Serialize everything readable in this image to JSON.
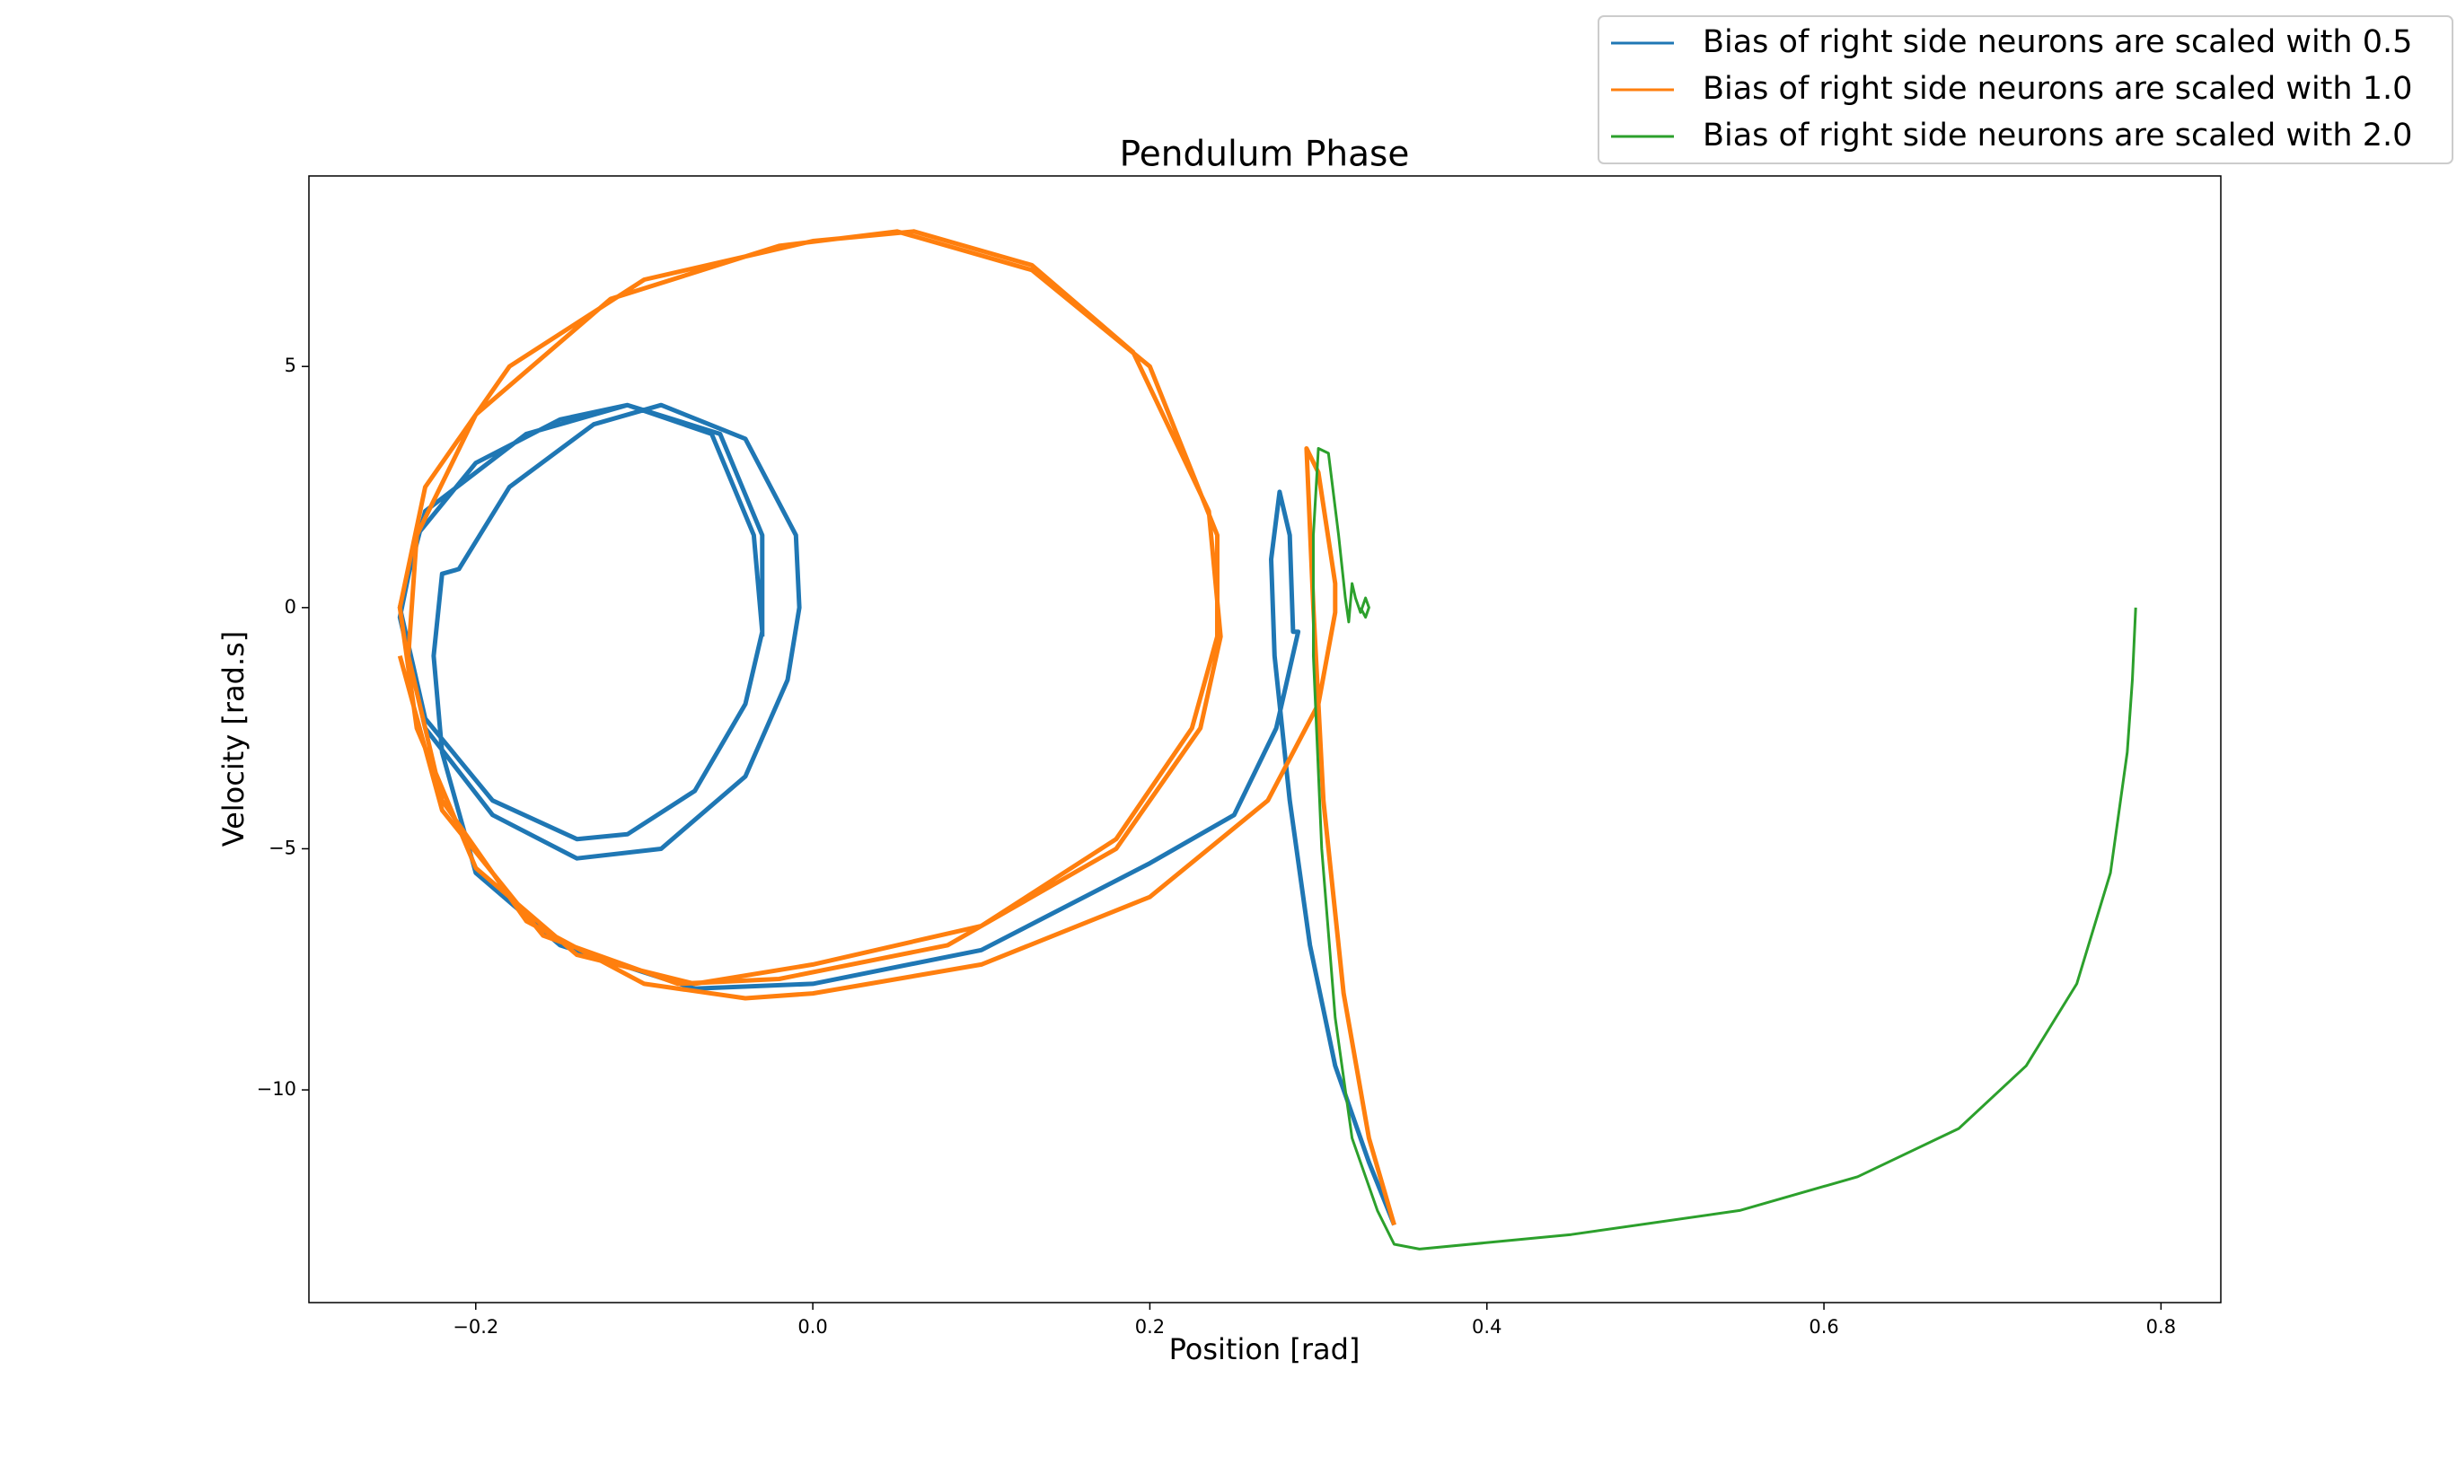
{
  "chart_data": {
    "type": "line",
    "title": "Pendulum Phase",
    "x_label": "Position [rad]",
    "y_label": "Velocity [rad.s]",
    "xlim": [
      -0.299,
      0.8355
    ],
    "ylim": [
      -14.41,
      8.95
    ],
    "xticks": [
      {
        "value": -0.2,
        "label": "−0.2"
      },
      {
        "value": 0,
        "label": "0.0"
      },
      0.2,
      0.4,
      0.6,
      0.8
    ],
    "yticks": [
      {
        "value": -10,
        "label": "−10"
      },
      {
        "value": -5,
        "label": "−5"
      },
      0,
      5
    ],
    "legend": "upper right",
    "series": [
      {
        "name": "Bias of right side neurons are scaled with 0.5",
        "color": "#1f77b4",
        "x": [
          0.345,
          0.33,
          0.31,
          0.295,
          0.283,
          0.274,
          0.272,
          0.277,
          0.283,
          0.285,
          0.288,
          0.275,
          0.25,
          0.2,
          0.1,
          0.0,
          -0.07,
          -0.15,
          -0.2,
          -0.22,
          -0.225,
          -0.22,
          -0.21,
          -0.18,
          -0.13,
          -0.09,
          -0.04,
          -0.01,
          -0.008,
          -0.015,
          -0.04,
          -0.09,
          -0.14,
          -0.19,
          -0.23,
          -0.245,
          -0.235,
          -0.2,
          -0.15,
          -0.11,
          -0.06,
          -0.035,
          -0.03,
          -0.04,
          -0.07,
          -0.11,
          -0.14,
          -0.19,
          -0.23,
          -0.245,
          -0.23,
          -0.17,
          -0.11,
          -0.055,
          -0.03,
          -0.03
        ],
        "values": [
          -12.8,
          -11.5,
          -9.5,
          -7,
          -4,
          -1,
          1,
          2.4,
          1.5,
          -0.5,
          -0.5,
          -2.5,
          -4.3,
          -5.3,
          -7.1,
          -7.8,
          -7.9,
          -7,
          -5.5,
          -3,
          -1,
          0.7,
          0.8,
          2.5,
          3.8,
          4.2,
          3.5,
          1.5,
          0,
          -1.5,
          -3.5,
          -5,
          -5.2,
          -4.3,
          -2.5,
          -0.2,
          1.5,
          3,
          3.9,
          4.2,
          3.6,
          1.5,
          -0.5,
          -2,
          -3.8,
          -4.7,
          -4.8,
          -4,
          -2.3,
          0,
          2,
          3.6,
          4.2,
          3.6,
          1.5,
          -0.6
        ]
      },
      {
        "name": "Bias of right side neurons are scaled with 1.0",
        "color": "#ff7f0e",
        "x": [
          0.345,
          0.33,
          0.315,
          0.303,
          0.297,
          0.293,
          0.3,
          0.31,
          0.31,
          0.3,
          0.27,
          0.2,
          0.1,
          0.0,
          -0.04,
          -0.1,
          -0.17,
          -0.22,
          -0.24,
          -0.235,
          -0.2,
          -0.12,
          -0.02,
          0.05,
          0.13,
          0.2,
          0.24,
          0.24,
          0.225,
          0.18,
          0.1,
          0.0,
          -0.07,
          -0.14,
          -0.2,
          -0.235,
          -0.245,
          -0.23,
          -0.18,
          -0.1,
          0.0,
          0.06,
          0.13,
          0.19,
          0.235,
          0.242,
          0.23,
          0.18,
          0.08,
          -0.02,
          -0.08,
          -0.16,
          -0.22,
          -0.245
        ],
        "values": [
          -12.8,
          -11,
          -8,
          -4,
          0,
          3.3,
          2.8,
          0.5,
          -0.1,
          -2,
          -4,
          -6,
          -7.4,
          -8,
          -8.1,
          -7.8,
          -6.5,
          -4,
          -1,
          1.5,
          4,
          6.4,
          7.5,
          7.8,
          7,
          5,
          1.5,
          -0.6,
          -2.5,
          -4.8,
          -6.6,
          -7.4,
          -7.8,
          -7.2,
          -5.4,
          -2.5,
          0,
          2.5,
          5,
          6.8,
          7.6,
          7.8,
          7.1,
          5.3,
          2,
          -0.6,
          -2.5,
          -5,
          -7,
          -7.7,
          -7.8,
          -6.8,
          -4.2,
          -1
        ]
      },
      {
        "name": "Bias of right side neurons are scaled with 2.0",
        "color": "#2ca02c",
        "x": [
          0.785,
          0.783,
          0.78,
          0.77,
          0.75,
          0.72,
          0.68,
          0.62,
          0.55,
          0.45,
          0.36,
          0.345,
          0.335,
          0.32,
          0.31,
          0.302,
          0.297,
          0.297,
          0.3,
          0.306,
          0.312,
          0.316,
          0.318,
          0.32,
          0.322,
          0.325,
          0.328,
          0.33,
          0.328,
          0.325
        ],
        "values": [
          0,
          -1.5,
          -3,
          -5.5,
          -7.8,
          -9.5,
          -10.8,
          -11.8,
          -12.5,
          -13,
          -13.3,
          -13.2,
          -12.5,
          -11,
          -8.5,
          -5,
          -1,
          1.5,
          3.3,
          3.2,
          1.5,
          0.2,
          -0.3,
          0.5,
          0.2,
          -0.1,
          0.2,
          0,
          -0.2,
          0
        ]
      }
    ]
  }
}
